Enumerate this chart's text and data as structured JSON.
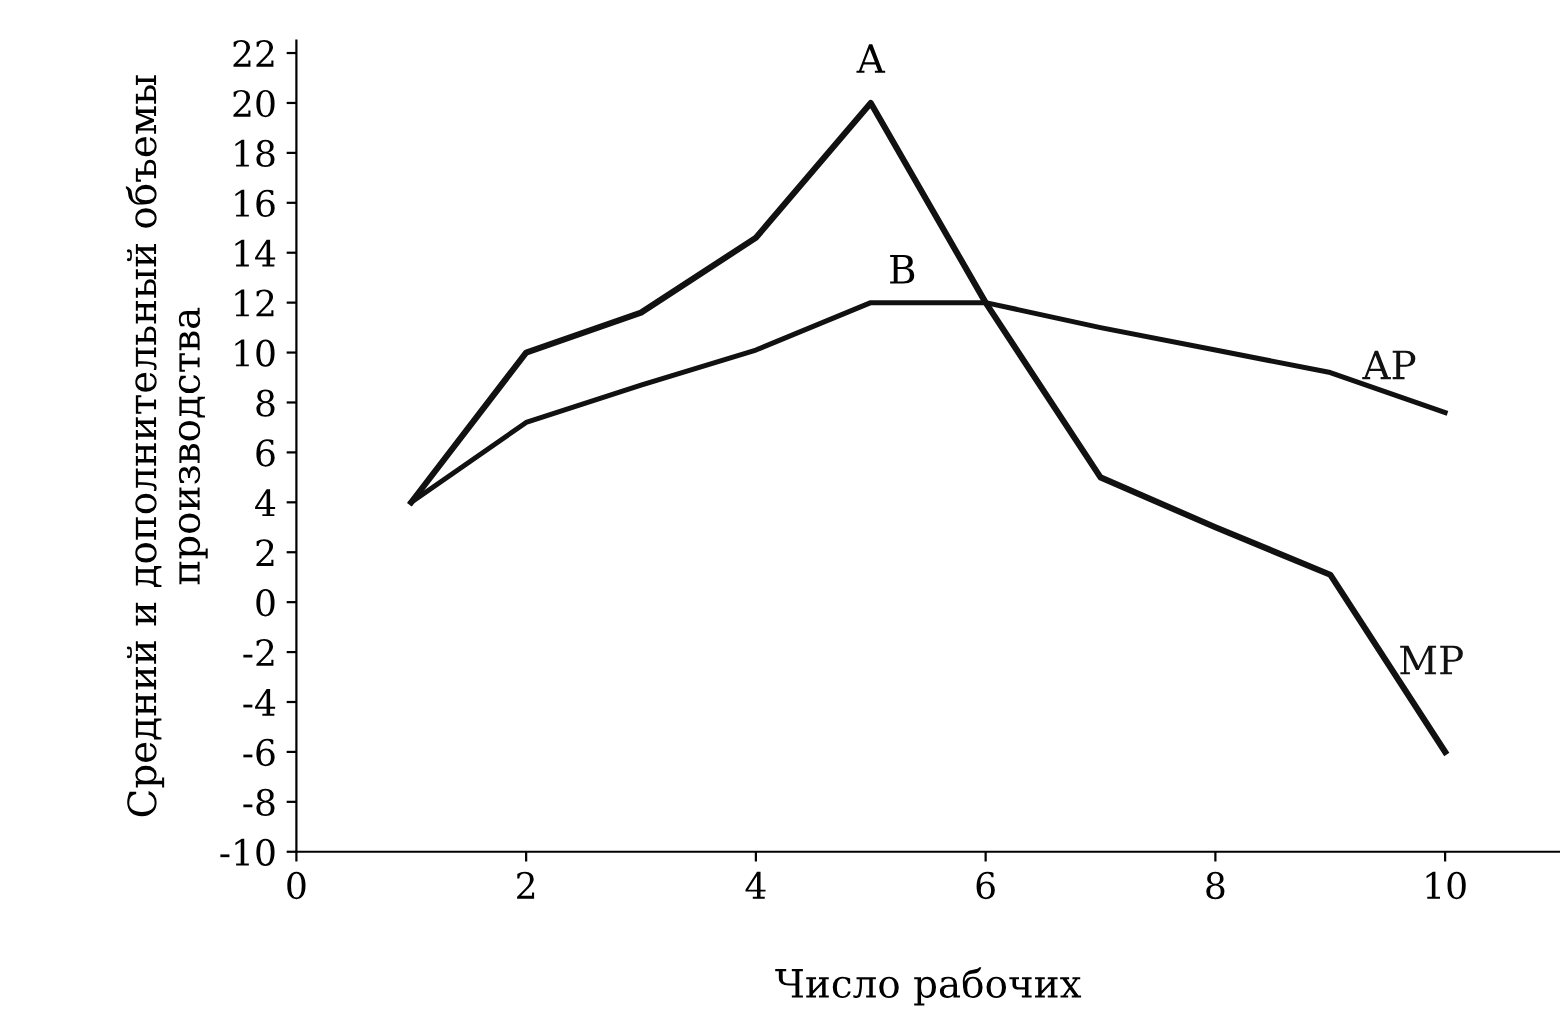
{
  "chart_data": {
    "type": "line",
    "xlabel": "Число рабочих",
    "ylabel": "Средний и дополнительный объемы\nпроизводства",
    "xlim": [
      0,
      11
    ],
    "ylim": [
      -10,
      22.5
    ],
    "xticks": [
      0,
      2,
      4,
      6,
      8,
      10
    ],
    "yticks": [
      -10,
      -8,
      -6,
      -4,
      -2,
      0,
      2,
      4,
      6,
      8,
      10,
      12,
      14,
      16,
      18,
      20,
      22
    ],
    "x": [
      1,
      2,
      3,
      4,
      5,
      6,
      7,
      8,
      9,
      10
    ],
    "series": [
      {
        "name": "MP",
        "color": "#111111",
        "values": [
          4,
          10,
          11.6,
          14.6,
          20,
          12,
          5,
          3,
          1.1,
          -6
        ]
      },
      {
        "name": "AP",
        "color": "#111111",
        "values": [
          4,
          7.2,
          8.7,
          10.1,
          12,
          12,
          11,
          10.1,
          9.2,
          7.6
        ]
      }
    ],
    "annotations": [
      {
        "text": "A",
        "x": 5,
        "y": 20
      },
      {
        "text": "B",
        "x": 6,
        "y": 12
      }
    ],
    "grid": false,
    "legend": false,
    "marker": "none",
    "line_style": "solid"
  }
}
